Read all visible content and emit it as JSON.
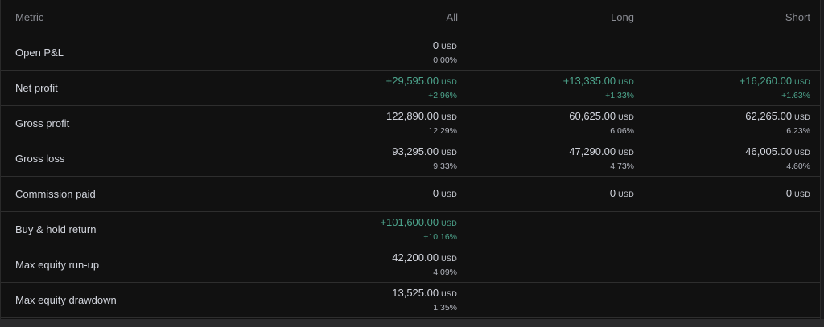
{
  "header": {
    "metric": "Metric",
    "all": "All",
    "long": "Long",
    "short": "Short"
  },
  "unit": "USD",
  "colors": {
    "positive": "#4da58d",
    "text": "#d1d4dc",
    "background": "#111111"
  },
  "rows": [
    {
      "label": "Open P&L",
      "all": {
        "value": "0",
        "percent": "0.00%",
        "positive": false
      },
      "long": null,
      "short": null
    },
    {
      "label": "Net profit",
      "all": {
        "value": "+29,595.00",
        "percent": "+2.96%",
        "positive": true
      },
      "long": {
        "value": "+13,335.00",
        "percent": "+1.33%",
        "positive": true
      },
      "short": {
        "value": "+16,260.00",
        "percent": "+1.63%",
        "positive": true
      }
    },
    {
      "label": "Gross profit",
      "all": {
        "value": "122,890.00",
        "percent": "12.29%",
        "positive": false
      },
      "long": {
        "value": "60,625.00",
        "percent": "6.06%",
        "positive": false
      },
      "short": {
        "value": "62,265.00",
        "percent": "6.23%",
        "positive": false
      }
    },
    {
      "label": "Gross loss",
      "all": {
        "value": "93,295.00",
        "percent": "9.33%",
        "positive": false
      },
      "long": {
        "value": "47,290.00",
        "percent": "4.73%",
        "positive": false
      },
      "short": {
        "value": "46,005.00",
        "percent": "4.60%",
        "positive": false
      }
    },
    {
      "label": "Commission paid",
      "all": {
        "value": "0",
        "percent": null,
        "positive": false
      },
      "long": {
        "value": "0",
        "percent": null,
        "positive": false
      },
      "short": {
        "value": "0",
        "percent": null,
        "positive": false
      }
    },
    {
      "label": "Buy & hold return",
      "all": {
        "value": "+101,600.00",
        "percent": "+10.16%",
        "positive": true
      },
      "long": null,
      "short": null
    },
    {
      "label": "Max equity run-up",
      "all": {
        "value": "42,200.00",
        "percent": "4.09%",
        "positive": false
      },
      "long": null,
      "short": null
    },
    {
      "label": "Max equity drawdown",
      "all": {
        "value": "13,525.00",
        "percent": "1.35%",
        "positive": false
      },
      "long": null,
      "short": null
    }
  ]
}
